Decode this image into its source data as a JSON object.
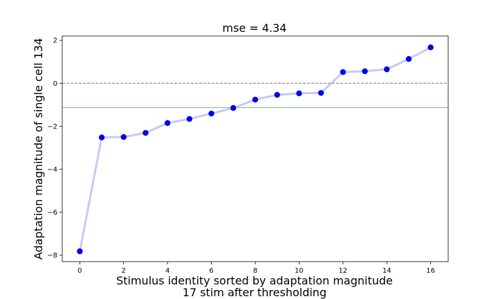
{
  "chart_data": {
    "type": "line",
    "title": "mse = 4.34",
    "xlabel_lines": [
      "Stimulus identity sorted by adaptation magnitude",
      "17 stim after thresholding"
    ],
    "ylabel": "Adaptation magnitude of single cell 134",
    "x": [
      0,
      1,
      2,
      3,
      4,
      5,
      6,
      7,
      8,
      9,
      10,
      11,
      12,
      13,
      14,
      15,
      16
    ],
    "series": [
      {
        "values": [
          -7.82,
          -2.52,
          -2.5,
          -2.31,
          -1.85,
          -1.66,
          -1.41,
          -1.15,
          -0.76,
          -0.54,
          -0.47,
          -0.45,
          0.52,
          0.56,
          0.65,
          1.13,
          1.67
        ],
        "line_color": "#c8c8f5",
        "marker_color": "#0000ee"
      }
    ],
    "reference_lines": [
      {
        "y": 0,
        "color": "#777777",
        "style": "dashed"
      },
      {
        "y": -1.13,
        "color": "#78b878",
        "style": "solid"
      }
    ],
    "xlim": [
      -0.8,
      16.8
    ],
    "ylim": [
      -8.3,
      2.2
    ],
    "xticks": [
      0,
      2,
      4,
      6,
      8,
      10,
      12,
      14,
      16
    ],
    "yticks": [
      2,
      0,
      -2,
      -4,
      -6,
      -8
    ],
    "grid": false
  }
}
